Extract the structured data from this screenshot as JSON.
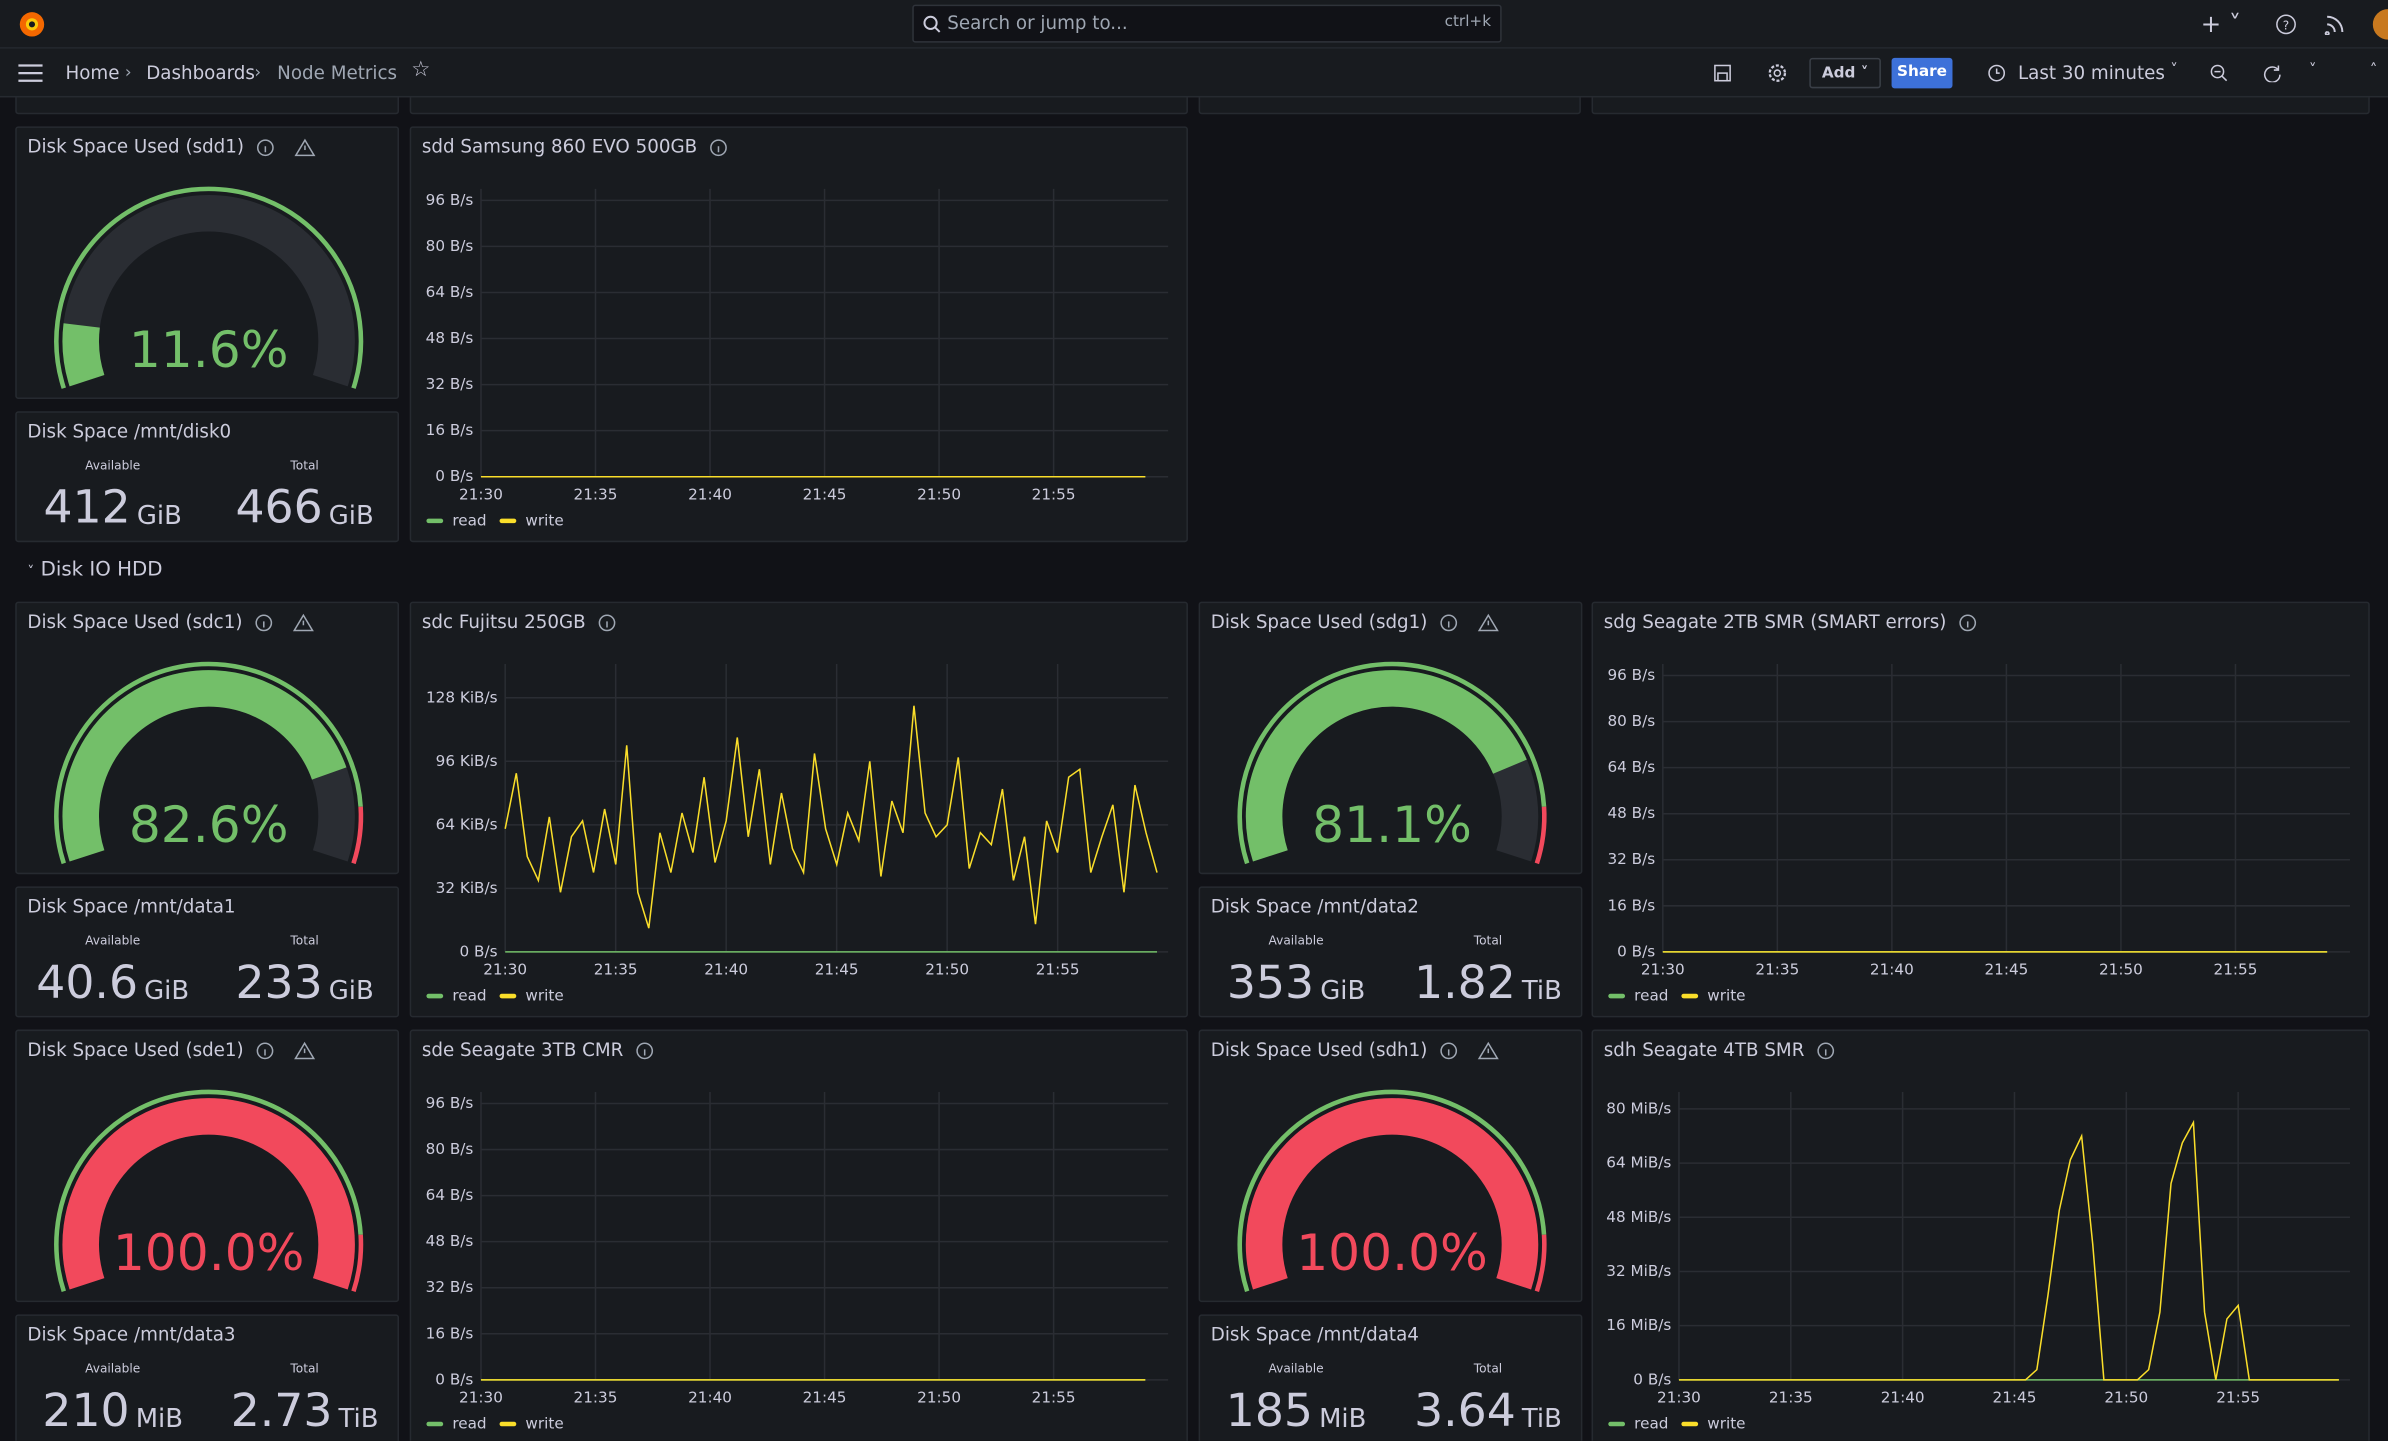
{
  "header": {
    "search": "Search or jump to...",
    "shortcut": "ctrl+k",
    "breadcrumbs": [
      "Home",
      "Dashboards",
      "Node Metrics"
    ],
    "add": "Add",
    "share": "Share",
    "time_range": "Last 30 minutes"
  },
  "row_title": "Disk IO HDD",
  "gauges": [
    {
      "title": "Disk Space Used (sdd1)",
      "value": 11.6,
      "value_label": "11.6%",
      "min": 0,
      "max": 100
    },
    {
      "title": "Disk Space Used (sdc1)",
      "value": 82.6,
      "value_label": "82.6%",
      "min": 0,
      "max": 100,
      "threshold": 90
    },
    {
      "title": "Disk Space Used (sdg1)",
      "value": 81.1,
      "value_label": "81.1%",
      "min": 0,
      "max": 100,
      "threshold": 90
    },
    {
      "title": "Disk Space Used (sde1)",
      "value": 100,
      "value_label": "100.0%",
      "min": 0,
      "max": 100,
      "threshold": 90
    },
    {
      "title": "Disk Space Used (sdh1)",
      "value": 100,
      "value_label": "100.0%",
      "min": 0,
      "max": 100,
      "threshold": 90
    }
  ],
  "stats": [
    {
      "title": "Disk Space /mnt/disk0",
      "fields": [
        {
          "label": "Available",
          "value": 412,
          "unit": "GiB"
        },
        {
          "label": "Total",
          "value": 466,
          "unit": "GiB"
        }
      ]
    },
    {
      "title": "Disk Space /mnt/data1",
      "fields": [
        {
          "label": "Available",
          "value": 40.6,
          "unit": "GiB"
        },
        {
          "label": "Total",
          "value": 233,
          "unit": "GiB"
        }
      ]
    },
    {
      "title": "Disk Space /mnt/data2",
      "fields": [
        {
          "label": "Available",
          "value": 353,
          "unit": "GiB"
        },
        {
          "label": "Total",
          "value": 1.82,
          "unit": "TiB"
        }
      ]
    },
    {
      "title": "Disk Space /mnt/data3",
      "fields": [
        {
          "label": "Available",
          "value": 210,
          "unit": "MiB"
        },
        {
          "label": "Total",
          "value": 2.73,
          "unit": "TiB"
        }
      ]
    },
    {
      "title": "Disk Space /mnt/data4",
      "fields": [
        {
          "label": "Available",
          "value": 185,
          "unit": "MiB"
        },
        {
          "label": "Total",
          "value": 3.64,
          "unit": "TiB"
        }
      ]
    }
  ],
  "chart_data": [
    {
      "type": "line",
      "title": "sdd Samsung 860 EVO 500GB",
      "categories": [
        "21:30",
        null,
        null,
        null,
        null,
        "21:35",
        null,
        null,
        null,
        null,
        "21:40",
        null,
        null,
        null,
        null,
        "21:45",
        null,
        null,
        null,
        null,
        "21:50",
        null,
        null,
        null,
        null,
        "21:55",
        null,
        null,
        null,
        null
      ],
      "series": [
        {
          "name": "read",
          "color": "#73bf69",
          "values": [
            0,
            0,
            0,
            0,
            0,
            0,
            0,
            0,
            0,
            0,
            0,
            0,
            0,
            0,
            0,
            0,
            0,
            0,
            0,
            0,
            0,
            0,
            0,
            0,
            0,
            0,
            0,
            0,
            0,
            0
          ]
        },
        {
          "name": "write",
          "color": "#fade2a",
          "values": [
            0,
            0,
            0,
            0,
            0,
            0,
            0,
            0,
            0,
            0,
            0,
            0,
            0,
            0,
            0,
            0,
            0,
            0,
            0,
            0,
            0,
            0,
            0,
            0,
            0,
            0,
            0,
            0,
            0,
            0
          ]
        }
      ],
      "ylim": [
        0,
        100
      ],
      "yticks": [
        {
          "value": 0,
          "label": "0 B/s"
        },
        {
          "value": 16,
          "label": "16 B/s"
        },
        {
          "value": 32,
          "label": "32 B/s"
        },
        {
          "value": 48,
          "label": "48 B/s"
        },
        {
          "value": 64,
          "label": "64 B/s"
        },
        {
          "value": 80,
          "label": "80 B/s"
        },
        {
          "value": 96,
          "label": "96 B/s"
        }
      ],
      "grid": true
    },
    {
      "type": "line",
      "title": "sdc Fujitsu 250GB",
      "categories": [
        "21:30",
        null,
        null,
        null,
        null,
        null,
        null,
        null,
        null,
        null,
        "21:35",
        null,
        null,
        null,
        null,
        null,
        null,
        null,
        null,
        null,
        "21:40",
        null,
        null,
        null,
        null,
        null,
        null,
        null,
        null,
        null,
        "21:45",
        null,
        null,
        null,
        null,
        null,
        null,
        null,
        null,
        null,
        "21:50",
        null,
        null,
        null,
        null,
        null,
        null,
        null,
        null,
        null,
        "21:55",
        null,
        null,
        null,
        null,
        null,
        null,
        null,
        null,
        null
      ],
      "series": [
        {
          "name": "read",
          "color": "#73bf69",
          "values": [
            0,
            0,
            0,
            0,
            0,
            0,
            0,
            0,
            0,
            0,
            0,
            0,
            0,
            0,
            0,
            0,
            0,
            0,
            0,
            0,
            0,
            0,
            0,
            0,
            0,
            0,
            0,
            0,
            0,
            0,
            0,
            0,
            0,
            0,
            0,
            0,
            0,
            0,
            0,
            0,
            0,
            0,
            0,
            0,
            0,
            0,
            0,
            0,
            0,
            0,
            0,
            0,
            0,
            0,
            0,
            0,
            0,
            0,
            0,
            0
          ]
        },
        {
          "name": "write",
          "color": "#fade2a",
          "values": [
            62,
            90,
            48,
            36,
            68,
            30,
            58,
            66,
            40,
            72,
            44,
            104,
            30,
            12,
            60,
            40,
            70,
            50,
            88,
            45,
            66,
            108,
            58,
            92,
            44,
            80,
            52,
            40,
            100,
            62,
            44,
            70,
            56,
            96,
            38,
            76,
            60,
            124,
            70,
            58,
            64,
            98,
            42,
            60,
            54,
            82,
            36,
            58,
            14,
            66,
            50,
            88,
            92,
            40,
            58,
            74,
            30,
            84,
            60,
            40
          ]
        }
      ],
      "ylim": [
        0,
        145
      ],
      "yticks": [
        {
          "value": 0,
          "label": "0 B/s"
        },
        {
          "value": 32,
          "label": "32 KiB/s"
        },
        {
          "value": 64,
          "label": "64 KiB/s"
        },
        {
          "value": 96,
          "label": "96 KiB/s"
        },
        {
          "value": 128,
          "label": "128 KiB/s"
        }
      ],
      "grid": true
    },
    {
      "type": "line",
      "title": "sdg Seagate 2TB SMR (SMART errors)",
      "categories": [
        "21:30",
        null,
        null,
        null,
        null,
        "21:35",
        null,
        null,
        null,
        null,
        "21:40",
        null,
        null,
        null,
        null,
        "21:45",
        null,
        null,
        null,
        null,
        "21:50",
        null,
        null,
        null,
        null,
        "21:55",
        null,
        null,
        null,
        null
      ],
      "series": [
        {
          "name": "read",
          "color": "#73bf69",
          "values": [
            0,
            0,
            0,
            0,
            0,
            0,
            0,
            0,
            0,
            0,
            0,
            0,
            0,
            0,
            0,
            0,
            0,
            0,
            0,
            0,
            0,
            0,
            0,
            0,
            0,
            0,
            0,
            0,
            0,
            0
          ]
        },
        {
          "name": "write",
          "color": "#fade2a",
          "values": [
            0,
            0,
            0,
            0,
            0,
            0,
            0,
            0,
            0,
            0,
            0,
            0,
            0,
            0,
            0,
            0,
            0,
            0,
            0,
            0,
            0,
            0,
            0,
            0,
            0,
            0,
            0,
            0,
            0,
            0
          ]
        }
      ],
      "ylim": [
        0,
        100
      ],
      "yticks": [
        {
          "value": 0,
          "label": "0 B/s"
        },
        {
          "value": 16,
          "label": "16 B/s"
        },
        {
          "value": 32,
          "label": "32 B/s"
        },
        {
          "value": 48,
          "label": "48 B/s"
        },
        {
          "value": 64,
          "label": "64 B/s"
        },
        {
          "value": 80,
          "label": "80 B/s"
        },
        {
          "value": 96,
          "label": "96 B/s"
        }
      ],
      "grid": true
    },
    {
      "type": "line",
      "title": "sde Seagate 3TB CMR",
      "categories": [
        "21:30",
        null,
        null,
        null,
        null,
        "21:35",
        null,
        null,
        null,
        null,
        "21:40",
        null,
        null,
        null,
        null,
        "21:45",
        null,
        null,
        null,
        null,
        "21:50",
        null,
        null,
        null,
        null,
        "21:55",
        null,
        null,
        null,
        null
      ],
      "series": [
        {
          "name": "read",
          "color": "#73bf69",
          "values": [
            0,
            0,
            0,
            0,
            0,
            0,
            0,
            0,
            0,
            0,
            0,
            0,
            0,
            0,
            0,
            0,
            0,
            0,
            0,
            0,
            0,
            0,
            0,
            0,
            0,
            0,
            0,
            0,
            0,
            0
          ]
        },
        {
          "name": "write",
          "color": "#fade2a",
          "values": [
            0,
            0,
            0,
            0,
            0,
            0,
            0,
            0,
            0,
            0,
            0,
            0,
            0,
            0,
            0,
            0,
            0,
            0,
            0,
            0,
            0,
            0,
            0,
            0,
            0,
            0,
            0,
            0,
            0,
            0
          ]
        }
      ],
      "ylim": [
        0,
        100
      ],
      "yticks": [
        {
          "value": 0,
          "label": "0 B/s"
        },
        {
          "value": 16,
          "label": "16 B/s"
        },
        {
          "value": 32,
          "label": "32 B/s"
        },
        {
          "value": 48,
          "label": "48 B/s"
        },
        {
          "value": 64,
          "label": "64 B/s"
        },
        {
          "value": 80,
          "label": "80 B/s"
        },
        {
          "value": 96,
          "label": "96 B/s"
        }
      ],
      "grid": true
    },
    {
      "type": "line",
      "title": "sdh Seagate 4TB SMR",
      "categories": [
        "21:30",
        null,
        null,
        null,
        null,
        null,
        null,
        null,
        null,
        null,
        "21:35",
        null,
        null,
        null,
        null,
        null,
        null,
        null,
        null,
        null,
        "21:40",
        null,
        null,
        null,
        null,
        null,
        null,
        null,
        null,
        null,
        "21:45",
        null,
        null,
        null,
        null,
        null,
        null,
        null,
        null,
        null,
        "21:50",
        null,
        null,
        null,
        null,
        null,
        null,
        null,
        null,
        null,
        "21:55",
        null,
        null,
        null,
        null,
        null,
        null,
        null,
        null,
        null
      ],
      "series": [
        {
          "name": "read",
          "color": "#73bf69",
          "values": [
            0,
            0,
            0,
            0,
            0,
            0,
            0,
            0,
            0,
            0,
            0,
            0,
            0,
            0,
            0,
            0,
            0,
            0,
            0,
            0,
            0,
            0,
            0,
            0,
            0,
            0,
            0,
            0,
            0,
            0,
            0,
            0,
            0,
            0,
            0,
            0,
            0,
            0,
            0,
            0,
            0,
            0,
            0,
            0,
            0,
            0,
            0,
            0,
            0,
            0,
            0,
            0,
            0,
            0,
            0,
            0,
            0,
            0,
            0,
            0
          ]
        },
        {
          "name": "write",
          "color": "#fade2a",
          "values": [
            0,
            0,
            0,
            0,
            0,
            0,
            0,
            0,
            0,
            0,
            0,
            0,
            0,
            0,
            0,
            0,
            0,
            0,
            0,
            0,
            0,
            0,
            0,
            0,
            0,
            0,
            0,
            0,
            0,
            0,
            0,
            0,
            3,
            25,
            50,
            65,
            72,
            40,
            0,
            0,
            0,
            0,
            3,
            20,
            58,
            70,
            76,
            20,
            0,
            18,
            22,
            0,
            0,
            0,
            0,
            0,
            0,
            0,
            0,
            0
          ]
        }
      ],
      "ylim": [
        0,
        85
      ],
      "yticks": [
        {
          "value": 0,
          "label": "0 B/s"
        },
        {
          "value": 16,
          "label": "16 MiB/s"
        },
        {
          "value": 32,
          "label": "32 MiB/s"
        },
        {
          "value": 48,
          "label": "48 MiB/s"
        },
        {
          "value": 64,
          "label": "64 MiB/s"
        },
        {
          "value": 80,
          "label": "80 MiB/s"
        }
      ],
      "grid": true
    }
  ]
}
